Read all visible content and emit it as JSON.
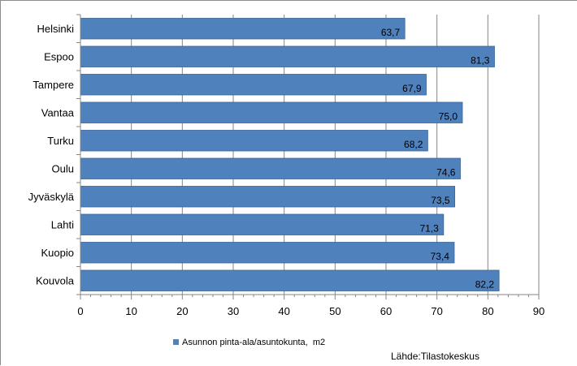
{
  "chart_data": {
    "type": "bar",
    "orientation": "horizontal",
    "categories": [
      "Helsinki",
      "Espoo",
      "Tampere",
      "Vantaa",
      "Turku",
      "Oulu",
      "Jyväskylä",
      "Lahti",
      "Kuopio",
      "Kouvola"
    ],
    "values": [
      63.7,
      81.3,
      67.9,
      75.0,
      68.2,
      74.6,
      73.5,
      71.3,
      73.4,
      82.2
    ],
    "value_labels": [
      "63,7",
      "81,3",
      "67,9",
      "75,0",
      "68,2",
      "74,6",
      "73,5",
      "71,3",
      "73,4",
      "82,2"
    ],
    "series": [
      {
        "name": "Asunnon pinta-ala/asuntokunta,  m2",
        "color": "#4f81bd"
      }
    ],
    "xlim": [
      0,
      90
    ],
    "x_ticks": [
      0,
      10,
      20,
      30,
      40,
      50,
      60,
      70,
      80,
      90
    ],
    "x_tick_labels": [
      "0",
      "10",
      "20",
      "30",
      "40",
      "50",
      "60",
      "70",
      "80",
      "90"
    ],
    "grid": "vertical major gridlines",
    "legend": "bottom-left",
    "source": "Lähde:Tilastokeskus",
    "colors": {
      "bar": "#4f81bd",
      "bar_outline": "#3a6596",
      "grid": "#868686",
      "axis": "#868686"
    }
  }
}
